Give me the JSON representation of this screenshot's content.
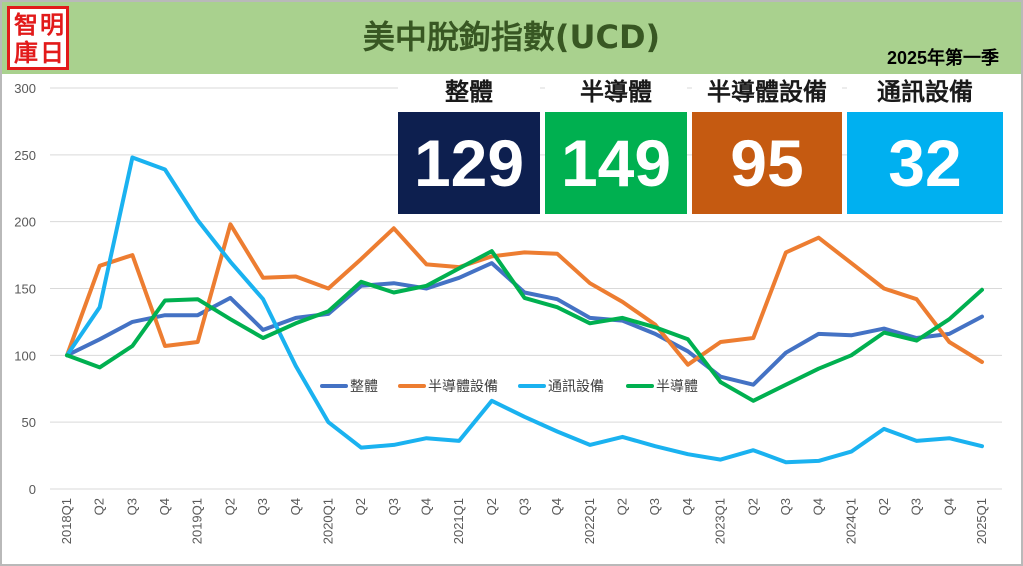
{
  "header": {
    "logo_chars": [
      "智",
      "明",
      "庫",
      "日"
    ],
    "title": "美中脫鉤指數(UCD)",
    "subtitle": "2025年第一季"
  },
  "kpis": [
    {
      "label": "整體",
      "value": "129",
      "color": "#0d1f4f"
    },
    {
      "label": "半導體",
      "value": "149",
      "color": "#00b050"
    },
    {
      "label": "半導體設備",
      "value": "95",
      "color": "#c55a11"
    },
    {
      "label": "通訊設備",
      "value": "32",
      "color": "#00b0f0"
    }
  ],
  "chart_data": {
    "type": "line",
    "title": "美中脫鉤指數(UCD)",
    "xlabel": "",
    "ylabel": "",
    "ylim": [
      0,
      300
    ],
    "yticks": [
      0,
      50,
      100,
      150,
      200,
      250,
      300
    ],
    "grid": true,
    "legend": "center",
    "categories": [
      "2018Q1",
      "Q2",
      "Q3",
      "Q4",
      "2019Q1",
      "Q2",
      "Q3",
      "Q4",
      "2020Q1",
      "Q2",
      "Q3",
      "Q4",
      "2021Q1",
      "Q2",
      "Q3",
      "Q4",
      "2022Q1",
      "Q2",
      "Q3",
      "Q4",
      "2023Q1",
      "Q2",
      "Q3",
      "Q4",
      "2024Q1",
      "Q2",
      "Q3",
      "Q4",
      "2025Q1"
    ],
    "series": [
      {
        "name": "整體",
        "color": "#4472c4",
        "values": [
          100,
          112,
          125,
          130,
          130,
          143,
          119,
          128,
          131,
          152,
          154,
          150,
          158,
          169,
          147,
          142,
          128,
          126,
          116,
          103,
          84,
          78,
          102,
          116,
          115,
          120,
          113,
          116,
          129
        ]
      },
      {
        "name": "半導體設備",
        "color": "#ed7d31",
        "values": [
          100,
          167,
          175,
          107,
          110,
          198,
          158,
          159,
          150,
          172,
          195,
          168,
          166,
          174,
          177,
          176,
          154,
          140,
          123,
          93,
          110,
          113,
          177,
          188,
          169,
          150,
          142,
          110,
          95
        ]
      },
      {
        "name": "通訊設備",
        "color": "#1ab2f0",
        "values": [
          100,
          136,
          248,
          239,
          201,
          170,
          142,
          92,
          50,
          31,
          33,
          38,
          36,
          66,
          54,
          43,
          33,
          39,
          32,
          26,
          22,
          29,
          20,
          21,
          28,
          45,
          36,
          38,
          32
        ]
      },
      {
        "name": "半導體",
        "color": "#00b050",
        "values": [
          100,
          91,
          107,
          141,
          142,
          127,
          113,
          124,
          133,
          155,
          147,
          152,
          165,
          178,
          143,
          136,
          124,
          128,
          121,
          112,
          80,
          66,
          78,
          90,
          100,
          117,
          111,
          127,
          149
        ]
      }
    ]
  }
}
